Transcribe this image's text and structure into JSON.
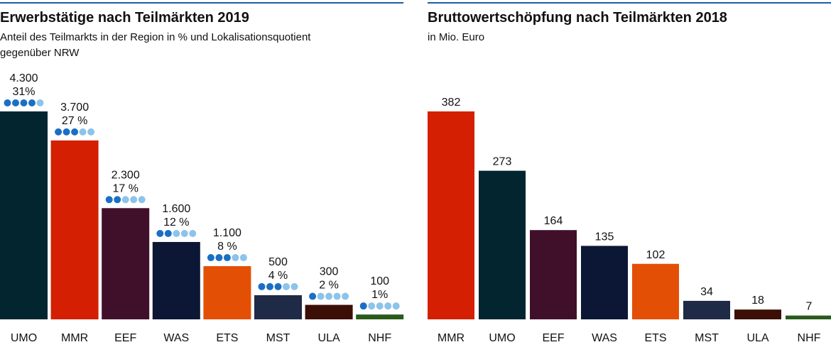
{
  "chart_data": [
    {
      "type": "bar",
      "title": "Erwerbstätige nach Teilmärkten 2019",
      "subtitle": [
        "Anteil des Teilmarkts in der Region in % und Lokalisationsquotient",
        "gegenüber NRW"
      ],
      "categories": [
        "UMO",
        "MMR",
        "EEF",
        "WAS",
        "ETS",
        "MST",
        "ULA",
        "NHF"
      ],
      "values": [
        4300,
        3700,
        2300,
        1600,
        1100,
        500,
        300,
        100
      ],
      "value_labels": [
        "4.300",
        "3.700",
        "2.300",
        "1.600",
        "1.100",
        "500",
        "300",
        "100"
      ],
      "shares": [
        31,
        27,
        17,
        12,
        8,
        4,
        2,
        1
      ],
      "share_labels": [
        "31%",
        "27 %",
        "17 %",
        "12 %",
        "8 %",
        "4 %",
        "2 %",
        "1%"
      ],
      "quotient_dots": [
        4,
        3,
        2,
        2,
        3,
        3,
        1,
        1
      ],
      "quotient_scale": 5,
      "colors": [
        "#022530",
        "#d41f02",
        "#40102b",
        "#0c1735",
        "#e34f05",
        "#1f2a46",
        "#3b0e06",
        "#2a5a1b"
      ]
    },
    {
      "type": "bar",
      "title": "Bruttowertschöpfung nach Teilmärkten 2018",
      "subtitle": [
        "in Mio. Euro"
      ],
      "categories": [
        "MMR",
        "UMO",
        "EEF",
        "WAS",
        "ETS",
        "MST",
        "ULA",
        "NHF"
      ],
      "values": [
        382,
        273,
        164,
        135,
        102,
        34,
        18,
        7
      ],
      "colors": [
        "#d41f02",
        "#022530",
        "#40102b",
        "#0c1735",
        "#e34f05",
        "#1f2a46",
        "#3b0e06",
        "#2a5a1b"
      ]
    }
  ]
}
